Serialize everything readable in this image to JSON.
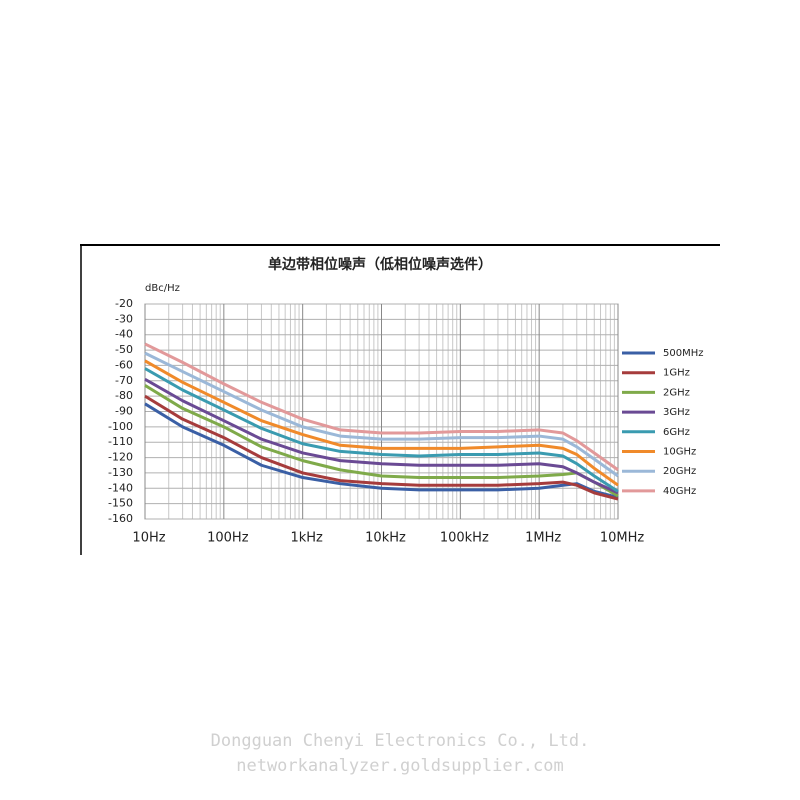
{
  "chart_data": {
    "type": "line",
    "title": "单边带相位噪声（低相位噪声选件）",
    "ylabel": "dBc/Hz",
    "xscale": "log",
    "grid": true,
    "legend": "right",
    "x": [
      10,
      30,
      100,
      300,
      1000,
      3000,
      10000,
      30000,
      100000,
      300000,
      1000000,
      2000000,
      3000000,
      5000000,
      10000000
    ],
    "xlim": [
      10,
      10000000
    ],
    "xticks": [
      {
        "value": 10,
        "label": "10Hz"
      },
      {
        "value": 100,
        "label": "100Hz"
      },
      {
        "value": 1000,
        "label": "1kHz"
      },
      {
        "value": 10000,
        "label": "10kHz"
      },
      {
        "value": 100000,
        "label": "100kHz"
      },
      {
        "value": 1000000,
        "label": "1MHz"
      },
      {
        "value": 10000000,
        "label": "10MHz"
      }
    ],
    "ylim": [
      -160,
      -20
    ],
    "yticks": [
      -160,
      -150,
      -140,
      -130,
      -120,
      -110,
      -100,
      -90,
      -80,
      -70,
      -60,
      -50,
      -40,
      -30,
      -20
    ],
    "series": [
      {
        "name": "500MHz",
        "color": "#3a5fa5",
        "values": [
          -85,
          -100,
          -112,
          -125,
          -133,
          -137,
          -140,
          -141,
          -141,
          -141,
          -140,
          -138,
          -137,
          -142,
          -146
        ]
      },
      {
        "name": "1GHz",
        "color": "#a63c3c",
        "values": [
          -80,
          -95,
          -107,
          -120,
          -130,
          -135,
          -137,
          -138,
          -138,
          -138,
          -137,
          -136,
          -138,
          -143,
          -147
        ]
      },
      {
        "name": "2GHz",
        "color": "#7faa4a",
        "values": [
          -73,
          -88,
          -100,
          -113,
          -122,
          -128,
          -132,
          -133,
          -133,
          -133,
          -132,
          -131,
          -130,
          -136,
          -145
        ]
      },
      {
        "name": "3GHz",
        "color": "#6a4a94",
        "values": [
          -69,
          -83,
          -96,
          -108,
          -117,
          -122,
          -124,
          -125,
          -125,
          -125,
          -124,
          -126,
          -130,
          -136,
          -143
        ]
      },
      {
        "name": "6GHz",
        "color": "#3a9bb0",
        "values": [
          -62,
          -76,
          -89,
          -101,
          -111,
          -116,
          -118,
          -119,
          -118,
          -118,
          -117,
          -119,
          -124,
          -132,
          -142
        ]
      },
      {
        "name": "10GHz",
        "color": "#f08a2a",
        "values": [
          -57,
          -71,
          -84,
          -96,
          -105,
          -112,
          -114,
          -114,
          -114,
          -113,
          -112,
          -114,
          -118,
          -127,
          -138
        ]
      },
      {
        "name": "20GHz",
        "color": "#9bb8d8",
        "values": [
          -52,
          -64,
          -77,
          -89,
          -100,
          -106,
          -108,
          -108,
          -107,
          -107,
          -106,
          -108,
          -113,
          -121,
          -132
        ]
      },
      {
        "name": "40GHz",
        "color": "#e2999a",
        "values": [
          -46,
          -58,
          -72,
          -84,
          -95,
          -102,
          -104,
          -104,
          -103,
          -103,
          -102,
          -104,
          -109,
          -117,
          -128
        ]
      }
    ]
  },
  "watermark": [
    "Dongguan Chenyi Electronics Co., Ltd.",
    "networkanalyzer.goldsupplier.com"
  ]
}
